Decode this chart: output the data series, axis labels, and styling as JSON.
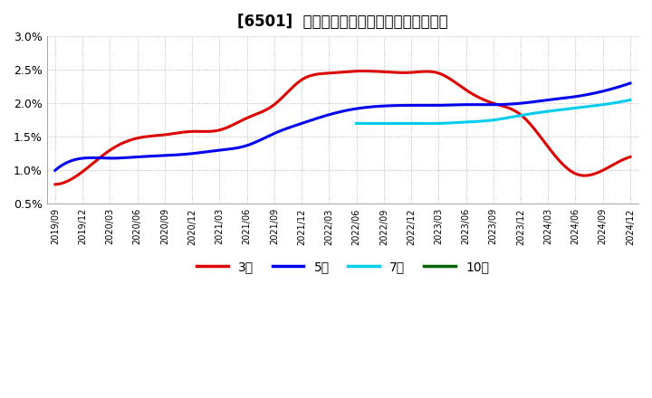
{
  "title": "[6501]  経常利益マージンの標準偏差の推移",
  "ylim": [
    0.005,
    0.03
  ],
  "yticks": [
    0.005,
    0.01,
    0.015,
    0.02,
    0.025,
    0.03
  ],
  "ytick_labels": [
    "0.5%",
    "1.0%",
    "1.5%",
    "2.0%",
    "2.5%",
    "3.0%"
  ],
  "x_labels": [
    "2019/09",
    "2019/12",
    "2020/03",
    "2020/06",
    "2020/09",
    "2020/12",
    "2021/03",
    "2021/06",
    "2021/09",
    "2021/12",
    "2022/03",
    "2022/06",
    "2022/09",
    "2022/12",
    "2023/03",
    "2023/06",
    "2023/09",
    "2023/12",
    "2024/03",
    "2024/06",
    "2024/09",
    "2024/12"
  ],
  "series": {
    "3年": {
      "color": "#dd0000",
      "values": [
        0.0079,
        0.0098,
        0.013,
        0.0148,
        0.0153,
        0.0158,
        0.016,
        0.0178,
        0.0198,
        0.0235,
        0.0245,
        0.0248,
        0.0247,
        0.0246,
        0.0245,
        0.022,
        0.02,
        0.0183,
        0.0135,
        0.0095,
        0.01,
        0.012
      ]
    },
    "5年": {
      "color": "#0000ee",
      "values": [
        0.01,
        0.0118,
        0.0118,
        0.012,
        0.0122,
        0.0125,
        0.013,
        0.0137,
        0.0155,
        0.017,
        0.0183,
        0.0192,
        0.0196,
        0.0197,
        0.0197,
        0.0198,
        0.0198,
        0.02,
        0.0205,
        0.021,
        0.0218,
        0.023
      ]
    },
    "7年": {
      "color": "#00ccee",
      "values": [
        null,
        null,
        null,
        null,
        null,
        null,
        null,
        null,
        null,
        null,
        null,
        0.017,
        0.017,
        0.017,
        0.017,
        0.0172,
        0.0175,
        0.0182,
        0.0188,
        0.0193,
        0.0198,
        0.0205
      ]
    },
    "10年": {
      "color": "#006400",
      "values": [
        null,
        null,
        null,
        null,
        null,
        null,
        null,
        null,
        null,
        null,
        null,
        null,
        null,
        null,
        null,
        null,
        null,
        null,
        null,
        null,
        null,
        null
      ]
    }
  },
  "legend_labels": [
    "3年",
    "5年",
    "7年",
    "10年"
  ],
  "legend_colors": [
    "#dd0000",
    "#0000ee",
    "#00ccee",
    "#006400"
  ],
  "background_color": "#ffffff",
  "plot_bg_color": "#ffffff",
  "grid_color": "#aaaaaa",
  "title_fontsize": 12
}
